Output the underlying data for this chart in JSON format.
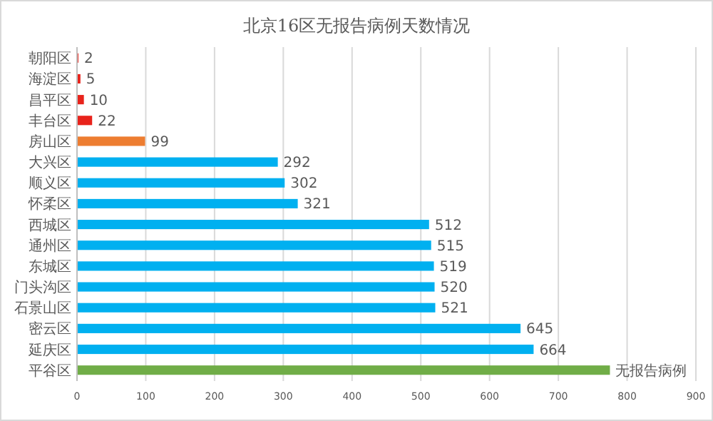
{
  "chart_data": {
    "type": "bar",
    "orientation": "horizontal",
    "title": "北京16区无报告病例天数情况",
    "categories": [
      "朝阳区",
      "海淀区",
      "昌平区",
      "丰台区",
      "房山区",
      "大兴区",
      "顺义区",
      "怀柔区",
      "西城区",
      "通州区",
      "东城区",
      "门头沟区",
      "石景山区",
      "密云区",
      "延庆区",
      "平谷区"
    ],
    "values": [
      2,
      5,
      10,
      22,
      99,
      292,
      302,
      321,
      512,
      515,
      519,
      520,
      521,
      645,
      664,
      775
    ],
    "value_labels": [
      "2",
      "5",
      "10",
      "22",
      "99",
      "292",
      "302",
      "321",
      "512",
      "515",
      "519",
      "520",
      "521",
      "645",
      "664",
      "无报告病例"
    ],
    "colors": [
      "#e8231b",
      "#e8231b",
      "#e8231b",
      "#e8231b",
      "#ed7d31",
      "#00b0f0",
      "#00b0f0",
      "#00b0f0",
      "#00b0f0",
      "#00b0f0",
      "#00b0f0",
      "#00b0f0",
      "#00b0f0",
      "#00b0f0",
      "#00b0f0",
      "#70ad47"
    ],
    "xlim": [
      0,
      900
    ],
    "xticks": [
      0,
      100,
      200,
      300,
      400,
      500,
      600,
      700,
      800,
      900
    ],
    "grid": "x"
  }
}
